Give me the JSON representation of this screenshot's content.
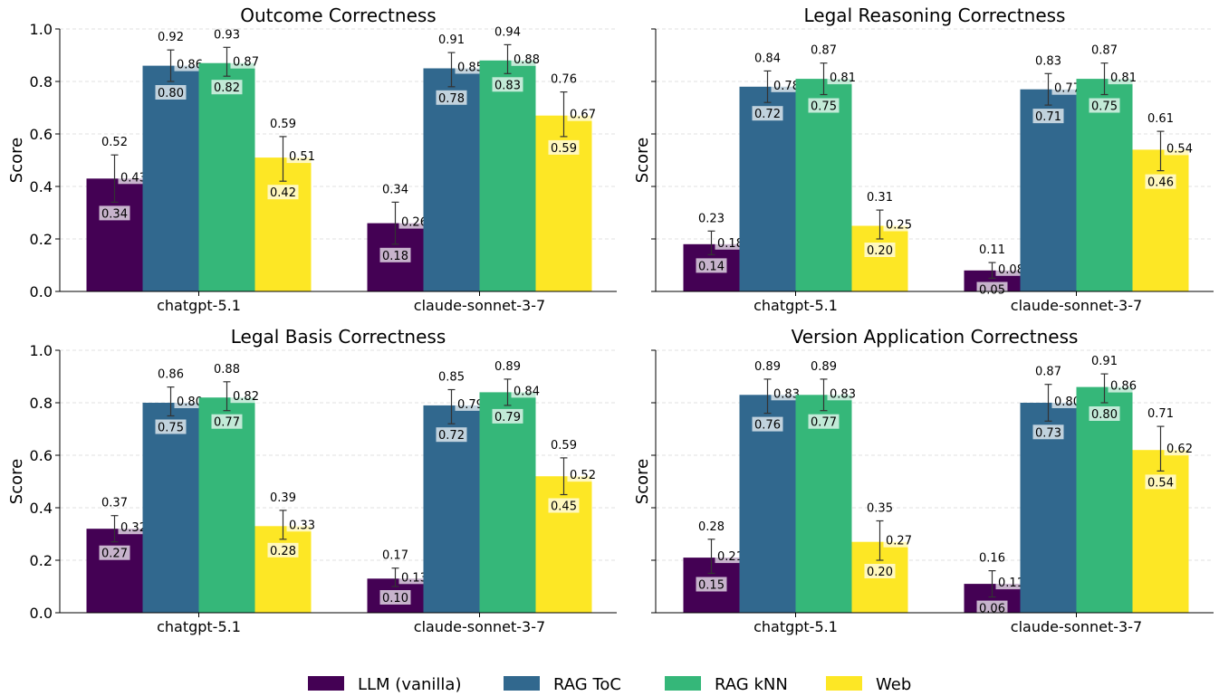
{
  "legend": {
    "series": [
      {
        "name": "LLM (vanilla)",
        "color": "#440154"
      },
      {
        "name": "RAG ToC",
        "color": "#31688e"
      },
      {
        "name": "RAG kNN",
        "color": "#35b779"
      },
      {
        "name": "Web",
        "color": "#fde725"
      }
    ]
  },
  "chart_data": [
    {
      "type": "bar",
      "title": "Outcome Correctness",
      "ylabel": "Score",
      "ylim": [
        0,
        1
      ],
      "yticks": [
        "0.0",
        "0.2",
        "0.4",
        "0.6",
        "0.8",
        "1.0"
      ],
      "show_ytick_labels": true,
      "grid": true,
      "categories": [
        "chatgpt-5.1",
        "claude-sonnet-3-7"
      ],
      "series": [
        {
          "name": "LLM (vanilla)",
          "values": [
            0.43,
            0.26
          ],
          "upper": [
            0.52,
            0.34
          ],
          "lower": [
            0.34,
            0.18
          ],
          "mean_label": [
            "0.43",
            "0.26"
          ],
          "upper_label": [
            "0.52",
            "0.34"
          ],
          "lower_label": [
            "0.34",
            "0.18"
          ]
        },
        {
          "name": "RAG ToC",
          "values": [
            0.86,
            0.85
          ],
          "upper": [
            0.92,
            0.91
          ],
          "lower": [
            0.8,
            0.78
          ],
          "mean_label": [
            "0.86",
            "0.85"
          ],
          "upper_label": [
            "0.92",
            "0.91"
          ],
          "lower_label": [
            "0.80",
            "0.78"
          ]
        },
        {
          "name": "RAG kNN",
          "values": [
            0.87,
            0.88
          ],
          "upper": [
            0.93,
            0.94
          ],
          "lower": [
            0.82,
            0.83
          ],
          "mean_label": [
            "0.87",
            "0.88"
          ],
          "upper_label": [
            "0.93",
            "0.94"
          ],
          "lower_label": [
            "0.82",
            "0.83"
          ]
        },
        {
          "name": "Web",
          "values": [
            0.51,
            0.67
          ],
          "upper": [
            0.59,
            0.76
          ],
          "lower": [
            0.42,
            0.59
          ],
          "mean_label": [
            "0.51",
            "0.67"
          ],
          "upper_label": [
            "0.59",
            "0.76"
          ],
          "lower_label": [
            "0.42",
            "0.59"
          ]
        }
      ]
    },
    {
      "type": "bar",
      "title": "Legal Reasoning Correctness",
      "ylabel": "Score",
      "ylim": [
        0,
        1
      ],
      "yticks": [
        "0.0",
        "0.2",
        "0.4",
        "0.6",
        "0.8",
        "1.0"
      ],
      "show_ytick_labels": false,
      "grid": true,
      "categories": [
        "chatgpt-5.1",
        "claude-sonnet-3-7"
      ],
      "series": [
        {
          "name": "LLM (vanilla)",
          "values": [
            0.18,
            0.08
          ],
          "upper": [
            0.23,
            0.11
          ],
          "lower": [
            0.14,
            0.05
          ],
          "mean_label": [
            "0.18",
            "0.08"
          ],
          "upper_label": [
            "0.23",
            "0.11"
          ],
          "lower_label": [
            "0.14",
            "0.05"
          ]
        },
        {
          "name": "RAG ToC",
          "values": [
            0.78,
            0.77
          ],
          "upper": [
            0.84,
            0.83
          ],
          "lower": [
            0.72,
            0.71
          ],
          "mean_label": [
            "0.78",
            "0.77"
          ],
          "upper_label": [
            "0.84",
            "0.83"
          ],
          "lower_label": [
            "0.72",
            "0.71"
          ]
        },
        {
          "name": "RAG kNN",
          "values": [
            0.81,
            0.81
          ],
          "upper": [
            0.87,
            0.87
          ],
          "lower": [
            0.75,
            0.75
          ],
          "mean_label": [
            "0.81",
            "0.81"
          ],
          "upper_label": [
            "0.87",
            "0.87"
          ],
          "lower_label": [
            "0.75",
            "0.75"
          ]
        },
        {
          "name": "Web",
          "values": [
            0.25,
            0.54
          ],
          "upper": [
            0.31,
            0.61
          ],
          "lower": [
            0.2,
            0.46
          ],
          "mean_label": [
            "0.25",
            "0.54"
          ],
          "upper_label": [
            "0.31",
            "0.61"
          ],
          "lower_label": [
            "0.20",
            "0.46"
          ]
        }
      ]
    },
    {
      "type": "bar",
      "title": "Legal Basis Correctness",
      "ylabel": "Score",
      "ylim": [
        0,
        1
      ],
      "yticks": [
        "0.0",
        "0.2",
        "0.4",
        "0.6",
        "0.8",
        "1.0"
      ],
      "show_ytick_labels": true,
      "grid": true,
      "categories": [
        "chatgpt-5.1",
        "claude-sonnet-3-7"
      ],
      "series": [
        {
          "name": "LLM (vanilla)",
          "values": [
            0.32,
            0.13
          ],
          "upper": [
            0.37,
            0.17
          ],
          "lower": [
            0.27,
            0.1
          ],
          "mean_label": [
            "0.32",
            "0.13"
          ],
          "upper_label": [
            "0.37",
            "0.17"
          ],
          "lower_label": [
            "0.27",
            "0.10"
          ]
        },
        {
          "name": "RAG ToC",
          "values": [
            0.8,
            0.79
          ],
          "upper": [
            0.86,
            0.85
          ],
          "lower": [
            0.75,
            0.72
          ],
          "mean_label": [
            "0.80",
            "0.79"
          ],
          "upper_label": [
            "0.86",
            "0.85"
          ],
          "lower_label": [
            "0.75",
            "0.72"
          ]
        },
        {
          "name": "RAG kNN",
          "values": [
            0.82,
            0.84
          ],
          "upper": [
            0.88,
            0.89
          ],
          "lower": [
            0.77,
            0.79
          ],
          "mean_label": [
            "0.82",
            "0.84"
          ],
          "upper_label": [
            "0.88",
            "0.89"
          ],
          "lower_label": [
            "0.77",
            "0.79"
          ]
        },
        {
          "name": "Web",
          "values": [
            0.33,
            0.52
          ],
          "upper": [
            0.39,
            0.59
          ],
          "lower": [
            0.28,
            0.45
          ],
          "mean_label": [
            "0.33",
            "0.52"
          ],
          "upper_label": [
            "0.39",
            "0.59"
          ],
          "lower_label": [
            "0.28",
            "0.45"
          ]
        }
      ]
    },
    {
      "type": "bar",
      "title": "Version Application Correctness",
      "ylabel": "Score",
      "ylim": [
        0,
        1
      ],
      "yticks": [
        "0.0",
        "0.2",
        "0.4",
        "0.6",
        "0.8",
        "1.0"
      ],
      "show_ytick_labels": false,
      "grid": true,
      "categories": [
        "chatgpt-5.1",
        "claude-sonnet-3-7"
      ],
      "series": [
        {
          "name": "LLM (vanilla)",
          "values": [
            0.21,
            0.11
          ],
          "upper": [
            0.28,
            0.16
          ],
          "lower": [
            0.15,
            0.06
          ],
          "mean_label": [
            "0.21",
            "0.11"
          ],
          "upper_label": [
            "0.28",
            "0.16"
          ],
          "lower_label": [
            "0.15",
            "0.06"
          ]
        },
        {
          "name": "RAG ToC",
          "values": [
            0.83,
            0.8
          ],
          "upper": [
            0.89,
            0.87
          ],
          "lower": [
            0.76,
            0.73
          ],
          "mean_label": [
            "0.83",
            "0.80"
          ],
          "upper_label": [
            "0.89",
            "0.87"
          ],
          "lower_label": [
            "0.76",
            "0.73"
          ]
        },
        {
          "name": "RAG kNN",
          "values": [
            0.83,
            0.86
          ],
          "upper": [
            0.89,
            0.91
          ],
          "lower": [
            0.77,
            0.8
          ],
          "mean_label": [
            "0.83",
            "0.86"
          ],
          "upper_label": [
            "0.89",
            "0.91"
          ],
          "lower_label": [
            "0.77",
            "0.80"
          ]
        },
        {
          "name": "Web",
          "values": [
            0.27,
            0.62
          ],
          "upper": [
            0.35,
            0.71
          ],
          "lower": [
            0.2,
            0.54
          ],
          "mean_label": [
            "0.27",
            "0.62"
          ],
          "upper_label": [
            "0.35",
            "0.71"
          ],
          "lower_label": [
            "0.20",
            "0.54"
          ]
        }
      ]
    }
  ]
}
